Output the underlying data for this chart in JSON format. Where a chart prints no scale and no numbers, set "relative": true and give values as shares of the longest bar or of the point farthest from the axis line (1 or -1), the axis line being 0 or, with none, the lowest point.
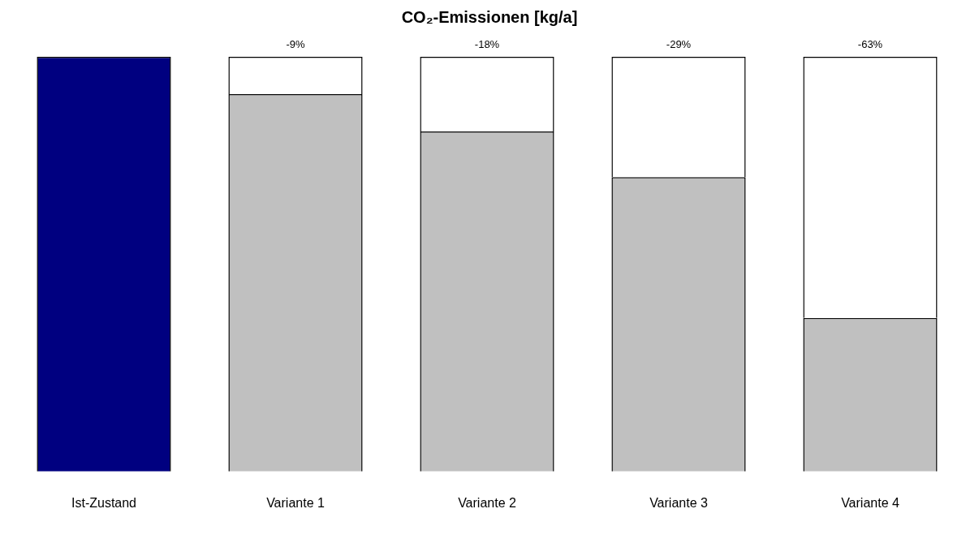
{
  "chart_data": {
    "type": "bar",
    "title": "CO₂-Emissionen  [kg/a]",
    "relative": true,
    "stacked": true,
    "legend": false,
    "grid": false,
    "categories": [
      "Ist-Zustand",
      "Variante 1",
      "Variante 2",
      "Variante 3",
      "Variante 4"
    ],
    "series": [
      {
        "colors": [
          "#000080",
          "#c0c0c0",
          "#c0c0c0",
          "#c0c0c0",
          "#c0c0c0"
        ],
        "values": [
          1,
          0.91,
          0.82,
          0.71,
          0.37
        ]
      },
      {
        "color": "#ffffff",
        "values": [
          null,
          0.09,
          0.18,
          0.29,
          0.63
        ]
      }
    ],
    "annotations": [
      {
        "text": "-9%",
        "x": "Variante 1",
        "y": 1
      },
      {
        "text": "-18%",
        "x": "Variante 2",
        "y": 1
      },
      {
        "text": "-29%",
        "x": "Variante 3",
        "y": 1
      },
      {
        "text": "-63%",
        "x": "Variante 4",
        "y": 1
      }
    ]
  }
}
